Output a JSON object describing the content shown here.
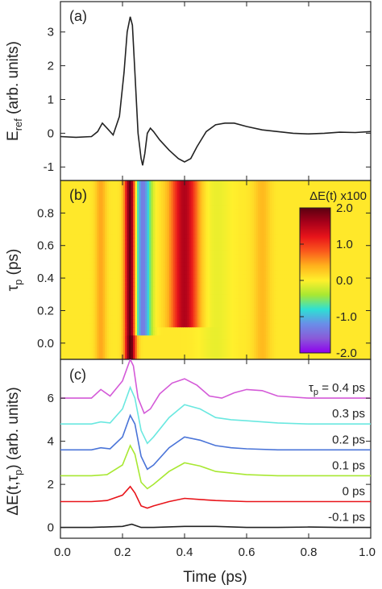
{
  "chart_data": [
    {
      "panel": "(a)",
      "type": "line",
      "ylabel": "E_ref (arb. units)",
      "ylabel_main": "E",
      "ylabel_sub": "ref",
      "ylabel_tail": " (arb. units)",
      "xlim": [
        0.0,
        1.0
      ],
      "ylim": [
        -1.4,
        3.9
      ],
      "yticks": [
        "-1",
        "0",
        "1",
        "2",
        "3"
      ],
      "yticks_values": [
        -1,
        0,
        1,
        2,
        3
      ],
      "color": "#222222",
      "x": [
        0.0,
        0.05,
        0.1,
        0.12,
        0.135,
        0.15,
        0.17,
        0.19,
        0.205,
        0.215,
        0.225,
        0.232,
        0.24,
        0.25,
        0.26,
        0.265,
        0.272,
        0.28,
        0.29,
        0.3,
        0.32,
        0.35,
        0.38,
        0.4,
        0.42,
        0.44,
        0.47,
        0.5,
        0.53,
        0.56,
        0.6,
        0.65,
        0.7,
        0.75,
        0.8,
        0.85,
        0.9,
        0.95,
        1.0
      ],
      "y": [
        -0.1,
        -0.12,
        -0.1,
        0.05,
        0.3,
        0.15,
        -0.05,
        0.5,
        1.8,
        3.0,
        3.45,
        3.2,
        1.8,
        0.0,
        -0.75,
        -0.95,
        -0.6,
        0.0,
        0.15,
        0.05,
        -0.2,
        -0.5,
        -0.75,
        -0.85,
        -0.75,
        -0.4,
        0.05,
        0.25,
        0.3,
        0.3,
        0.2,
        0.1,
        0.05,
        0.0,
        -0.02,
        0.0,
        0.03,
        0.02,
        0.05
      ]
    },
    {
      "panel": "(b)",
      "type": "heatmap",
      "title": "ΔE(t) x100",
      "ylabel": "τ_p (ps)",
      "ylabel_main": "τ",
      "ylabel_sub": "p",
      "ylabel_tail": " (ps)",
      "xlim": [
        0.0,
        1.0
      ],
      "ylim": [
        -0.1,
        1.0
      ],
      "yticks": [
        "0.0",
        "0.2",
        "0.4",
        "0.6",
        "0.8"
      ],
      "yticks_values": [
        0.0,
        0.2,
        0.4,
        0.6,
        0.8
      ],
      "colorbar_ticks": [
        "2.0",
        "1.0",
        "0.0",
        "-1.0",
        "-2.0"
      ],
      "colorbar_range": [
        -2.0,
        2.0
      ],
      "colorbar_colors": [
        "#5a0010",
        "#a8001a",
        "#e8141a",
        "#fa5a1c",
        "#ffb21c",
        "#fff02c",
        "#a8e832",
        "#2ee0d4",
        "#6a8ee8",
        "#8a5ad8",
        "#8e00ee"
      ],
      "features": [
        {
          "x": 0.225,
          "width": 0.02,
          "value": 2.0,
          "tau_from": -0.1,
          "tau_to": 1.0
        },
        {
          "x": 0.265,
          "width": 0.03,
          "value": -1.4,
          "tau_from": 0.05,
          "tau_to": 1.0
        },
        {
          "x": 0.4,
          "width": 0.05,
          "value": 1.5,
          "tau_from": 0.1,
          "tau_to": 1.0
        },
        {
          "x": 0.13,
          "width": 0.02,
          "value": 0.4,
          "tau_from": -0.1,
          "tau_to": 1.0
        },
        {
          "x": 0.5,
          "width": 0.06,
          "value": -0.15,
          "tau_from": -0.1,
          "tau_to": 1.0
        },
        {
          "x": 0.65,
          "width": 0.03,
          "value": 0.3,
          "tau_from": -0.1,
          "tau_to": 1.0
        }
      ],
      "background_value": 0.05
    },
    {
      "panel": "(c)",
      "type": "line",
      "xlabel": "Time (ps)",
      "ylabel": "ΔE(t,τ_p) (arb. units)",
      "ylabel_main": "ΔE(t,τ",
      "ylabel_sub": "p",
      "ylabel_tail": ") (arb. units)",
      "xlim": [
        0.0,
        1.0
      ],
      "ylim": [
        -0.5,
        7.8
      ],
      "yticks": [
        "0",
        "2",
        "4",
        "6"
      ],
      "yticks_values": [
        0,
        2,
        4,
        6
      ],
      "xticks": [
        "0.0",
        "0.2",
        "0.4",
        "0.6",
        "0.8",
        "1.0"
      ],
      "xticks_values": [
        0.0,
        0.2,
        0.4,
        0.6,
        0.8,
        1.0
      ],
      "series": [
        {
          "name": "-0.1 ps",
          "color": "#222222",
          "x": [
            0.0,
            0.1,
            0.2,
            0.23,
            0.26,
            0.3,
            0.4,
            0.5,
            0.6,
            0.7,
            0.8,
            0.9,
            1.0
          ],
          "y": [
            0.0,
            0.0,
            0.05,
            0.15,
            0.0,
            0.0,
            0.05,
            0.05,
            0.0,
            0.0,
            0.02,
            0.0,
            0.0
          ]
        },
        {
          "name": "0 ps",
          "color": "#e8141a",
          "x": [
            0.0,
            0.1,
            0.15,
            0.2,
            0.225,
            0.24,
            0.26,
            0.28,
            0.3,
            0.35,
            0.4,
            0.45,
            0.5,
            0.6,
            0.7,
            0.8,
            0.9,
            1.0
          ],
          "y": [
            1.2,
            1.2,
            1.25,
            1.5,
            1.9,
            1.6,
            1.0,
            0.9,
            1.0,
            1.2,
            1.35,
            1.3,
            1.25,
            1.2,
            1.2,
            1.2,
            1.2,
            1.2
          ]
        },
        {
          "name": "0.1 ps",
          "color": "#a8e832",
          "x": [
            0.0,
            0.1,
            0.15,
            0.2,
            0.225,
            0.24,
            0.26,
            0.28,
            0.3,
            0.35,
            0.4,
            0.45,
            0.5,
            0.6,
            0.7,
            0.8,
            0.9,
            1.0
          ],
          "y": [
            2.4,
            2.4,
            2.45,
            2.9,
            3.8,
            3.4,
            2.1,
            1.8,
            2.0,
            2.6,
            3.0,
            2.85,
            2.6,
            2.45,
            2.4,
            2.4,
            2.4,
            2.4
          ]
        },
        {
          "name": "0.2 ps",
          "color": "#4a74d8",
          "x": [
            0.0,
            0.1,
            0.13,
            0.16,
            0.2,
            0.225,
            0.24,
            0.26,
            0.28,
            0.3,
            0.35,
            0.4,
            0.45,
            0.5,
            0.55,
            0.6,
            0.7,
            0.8,
            0.9,
            1.0
          ],
          "y": [
            3.6,
            3.6,
            3.7,
            3.65,
            4.2,
            5.2,
            4.8,
            3.3,
            2.7,
            2.9,
            3.7,
            4.2,
            4.05,
            3.8,
            3.7,
            3.65,
            3.6,
            3.6,
            3.6,
            3.6
          ]
        },
        {
          "name": "0.3 ps",
          "color": "#6ae8e0",
          "x": [
            0.0,
            0.1,
            0.13,
            0.16,
            0.2,
            0.225,
            0.24,
            0.26,
            0.28,
            0.3,
            0.35,
            0.4,
            0.45,
            0.5,
            0.55,
            0.6,
            0.7,
            0.8,
            0.9,
            1.0
          ],
          "y": [
            4.8,
            4.8,
            4.9,
            4.85,
            5.5,
            6.5,
            6.0,
            4.5,
            3.9,
            4.2,
            5.1,
            5.7,
            5.5,
            5.1,
            5.0,
            4.95,
            4.85,
            4.8,
            4.8,
            4.8
          ]
        },
        {
          "name": "0.4 ps",
          "color": "#d45ad8",
          "x": [
            0.0,
            0.1,
            0.13,
            0.16,
            0.2,
            0.225,
            0.235,
            0.25,
            0.27,
            0.29,
            0.32,
            0.36,
            0.4,
            0.44,
            0.48,
            0.52,
            0.56,
            0.6,
            0.65,
            0.7,
            0.8,
            0.9,
            1.0
          ],
          "y": [
            6.0,
            6.0,
            6.4,
            6.1,
            6.8,
            7.8,
            7.5,
            6.0,
            5.3,
            5.5,
            6.2,
            6.7,
            6.9,
            6.6,
            6.1,
            6.0,
            6.25,
            6.4,
            6.35,
            6.1,
            6.0,
            6.0,
            6.0
          ]
        }
      ],
      "curve_labels": [
        {
          "text_main": "τ",
          "text_sub": "p",
          "text_tail": " = 0.4 ps",
          "series": 5
        },
        {
          "text": "0.3 ps",
          "series": 4
        },
        {
          "text": "0.2 ps",
          "series": 3
        },
        {
          "text": "0.1 ps",
          "series": 2
        },
        {
          "text": "0 ps",
          "series": 1
        },
        {
          "text": "-0.1 ps",
          "series": 0
        }
      ]
    }
  ]
}
